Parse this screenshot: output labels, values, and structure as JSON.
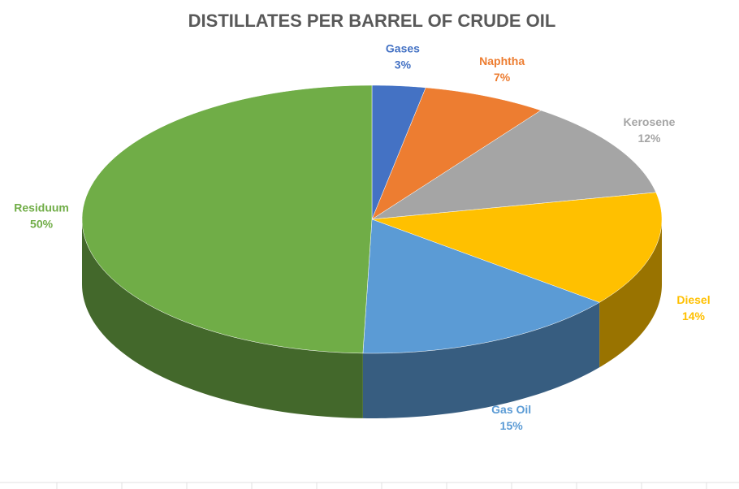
{
  "chart_data": {
    "type": "pie3d",
    "title": "DISTILLATES PER BARREL OF CRUDE OIL",
    "categories": [
      "Gases",
      "Naphtha",
      "Kerosene",
      "Diesel",
      "Gas Oil",
      "Residuum"
    ],
    "values": [
      3,
      7,
      12,
      14,
      15,
      50
    ],
    "value_labels": [
      "3%",
      "7%",
      "12%",
      "14%",
      "15%",
      "50%"
    ],
    "colors": [
      "#4472c4",
      "#ed7d31",
      "#a5a5a5",
      "#ffc000",
      "#5b9bd5",
      "#70ad47"
    ]
  }
}
